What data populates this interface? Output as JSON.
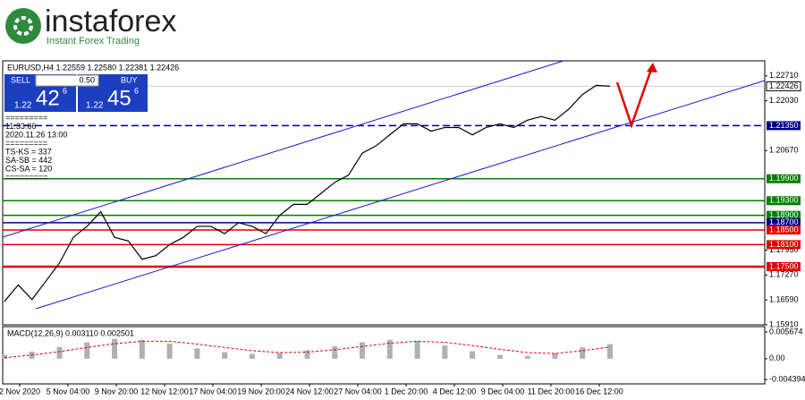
{
  "header": {
    "logo_text": "instaforex",
    "logo_sub": "Instant Forex Trading"
  },
  "trade_panel": {
    "sell": "SELL",
    "buy": "BUY",
    "volume": "0.50",
    "sell_big": "1.22",
    "sell_pips": "42",
    "sell_frac": "6",
    "buy_big": "1.22",
    "buy_pips": "45",
    "buy_frac": "6"
  },
  "info_lines": [
    "=========",
    "11:33:66",
    "2020.11.26 13:00",
    "=========",
    "TS-KS = 337",
    "SA-SB = 442",
    "CS-SA = 120",
    "========="
  ],
  "chart_data": [
    {
      "type": "line",
      "title": "EURUSD,H4 1.22559 1.22580 1.22381 1.22426",
      "color": "#000000",
      "values": [
        1.1655,
        1.17,
        1.166,
        1.171,
        1.176,
        1.183,
        1.186,
        1.19,
        1.183,
        1.182,
        1.177,
        1.178,
        1.181,
        1.183,
        1.186,
        1.186,
        1.184,
        1.187,
        1.186,
        1.184,
        1.189,
        1.192,
        1.192,
        1.195,
        1.198,
        1.2,
        1.206,
        1.208,
        1.211,
        1.214,
        1.214,
        1.212,
        1.213,
        1.213,
        1.211,
        1.213,
        1.214,
        1.213,
        1.215,
        1.216,
        1.215,
        1.218,
        1.222,
        1.2245,
        1.22426
      ],
      "ylim": [
        1.1591,
        1.2312
      ],
      "yticks": [
        {
          "value": 1.2271,
          "label": "1.22710"
        },
        {
          "value": 1.2203,
          "label": "1.22030"
        },
        {
          "value": 1.2067,
          "label": "1.20670"
        },
        {
          "value": 1.1795,
          "label": "1.17950"
        },
        {
          "value": 1.1727,
          "label": "1.17270"
        },
        {
          "value": 1.1659,
          "label": "1.16590"
        },
        {
          "value": 1.1591,
          "label": "1.15910"
        }
      ],
      "levels": [
        {
          "value": 1.2135,
          "label": "1.21350",
          "color": "#00008b",
          "dashed": true
        },
        {
          "value": 1.199,
          "label": "1.19900",
          "color": "#008000"
        },
        {
          "value": 1.193,
          "label": "1.19300",
          "color": "#008000"
        },
        {
          "value": 1.189,
          "label": "1.18900",
          "color": "#008000"
        },
        {
          "value": 1.187,
          "label": "1.18700",
          "color": "#00008b"
        },
        {
          "value": 1.185,
          "label": "1.18500",
          "color": "#e00000"
        },
        {
          "value": 1.181,
          "label": "1.18100",
          "color": "#e00000"
        },
        {
          "value": 1.175,
          "label": "1.17500",
          "color": "#e00000"
        }
      ],
      "last_price": {
        "value": 1.22426,
        "label": "1.22426"
      },
      "xlabels": [
        "2 Nov 2020",
        "5 Nov 04:00",
        "9 Nov 20:00",
        "12 Nov 12:00",
        "17 Nov 04:00",
        "19 Nov 20:00",
        "24 Nov 12:00",
        "27 Nov 04:00",
        "1 Dec 20:00",
        "4 Dec 12:00",
        "9 Dec 04:00",
        "11 Dec 20:00",
        "16 Dec 12:00"
      ]
    },
    {
      "type": "macd",
      "title": "MACD(12,26,9) 0.003110 0.002501",
      "ylim": [
        -0.004394,
        0.005674
      ],
      "yticks": [
        0.005674,
        {
          "value": 0,
          "label": "0.00"
        },
        -0.004394
      ],
      "histogram": {
        "color": "#b0b0b0",
        "values": [
          0.0008,
          0.0015,
          0.0025,
          0.0035,
          0.0042,
          0.004,
          0.0032,
          0.0022,
          0.0014,
          0.001,
          0.0012,
          0.0018,
          0.0026,
          0.0035,
          0.004,
          0.0038,
          0.0028,
          0.0016,
          0.0008,
          0.0006,
          0.0012,
          0.0024,
          0.0031
        ]
      },
      "signal": {
        "color": "#e00000",
        "values": [
          0.0002,
          0.0008,
          0.0015,
          0.0024,
          0.0032,
          0.0037,
          0.0037,
          0.0031,
          0.0024,
          0.0017,
          0.0013,
          0.0014,
          0.0019,
          0.0026,
          0.0033,
          0.0037,
          0.0035,
          0.0028,
          0.002,
          0.0013,
          0.0011,
          0.0017,
          0.0025
        ]
      }
    }
  ]
}
